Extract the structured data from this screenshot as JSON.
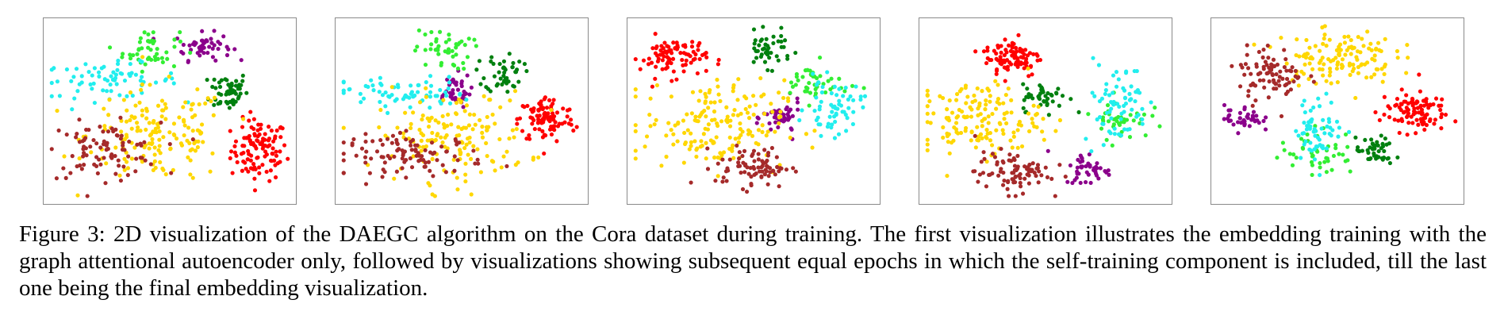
{
  "figure": {
    "caption": "Figure 3: 2D visualization of the DAEGC algorithm on the Cora dataset during training. The first visualization illustrates the embedding training with the graph attentional autoencoder only, followed by visualizations showing subsequent equal epochs in which the self-training component is included, till the last one being the final embedding visualization."
  },
  "chart_data": [
    {
      "type": "scatter",
      "xlim": [
        0,
        1
      ],
      "ylim": [
        0,
        1
      ],
      "grid": false,
      "clusters": [
        {
          "color": "#ff0000",
          "center": [
            0.88,
            0.27
          ],
          "spread": [
            0.06,
            0.09
          ],
          "count": 110
        },
        {
          "color": "#00800f",
          "center": [
            0.75,
            0.62
          ],
          "spread": [
            0.04,
            0.06
          ],
          "count": 55
        },
        {
          "color": "#8b008b",
          "center": [
            0.64,
            0.88
          ],
          "spread": [
            0.06,
            0.04
          ],
          "count": 50
        },
        {
          "color": "#33ee33",
          "center": [
            0.42,
            0.86
          ],
          "spread": [
            0.06,
            0.06
          ],
          "count": 45
        },
        {
          "color": "#22eeee",
          "center": [
            0.24,
            0.68
          ],
          "spread": [
            0.15,
            0.05
          ],
          "count": 70
        },
        {
          "color": "#ffd700",
          "center": [
            0.45,
            0.36
          ],
          "spread": [
            0.15,
            0.14
          ],
          "count": 160
        },
        {
          "color": "#a52a2a",
          "center": [
            0.22,
            0.27
          ],
          "spread": [
            0.12,
            0.08
          ],
          "count": 90
        }
      ]
    },
    {
      "type": "scatter",
      "xlim": [
        0,
        1
      ],
      "ylim": [
        0,
        1
      ],
      "grid": false,
      "clusters": [
        {
          "color": "#ff0000",
          "center": [
            0.86,
            0.45
          ],
          "spread": [
            0.06,
            0.07
          ],
          "count": 100
        },
        {
          "color": "#00800f",
          "center": [
            0.68,
            0.73
          ],
          "spread": [
            0.04,
            0.06
          ],
          "count": 45
        },
        {
          "color": "#8b008b",
          "center": [
            0.46,
            0.62
          ],
          "spread": [
            0.04,
            0.05
          ],
          "count": 40
        },
        {
          "color": "#33ee33",
          "center": [
            0.42,
            0.86
          ],
          "spread": [
            0.06,
            0.06
          ],
          "count": 45
        },
        {
          "color": "#22eeee",
          "center": [
            0.25,
            0.6
          ],
          "spread": [
            0.14,
            0.05
          ],
          "count": 70
        },
        {
          "color": "#ffd700",
          "center": [
            0.46,
            0.35
          ],
          "spread": [
            0.16,
            0.13
          ],
          "count": 150
        },
        {
          "color": "#a52a2a",
          "center": [
            0.3,
            0.24
          ],
          "spread": [
            0.15,
            0.06
          ],
          "count": 100
        }
      ]
    },
    {
      "type": "scatter",
      "xlim": [
        0,
        1
      ],
      "ylim": [
        0,
        1
      ],
      "grid": false,
      "clusters": [
        {
          "color": "#ff0000",
          "center": [
            0.16,
            0.82
          ],
          "spread": [
            0.07,
            0.06
          ],
          "count": 90
        },
        {
          "color": "#00800f",
          "center": [
            0.56,
            0.86
          ],
          "spread": [
            0.05,
            0.05
          ],
          "count": 45
        },
        {
          "color": "#8b008b",
          "center": [
            0.62,
            0.46
          ],
          "spread": [
            0.04,
            0.05
          ],
          "count": 45
        },
        {
          "color": "#33ee33",
          "center": [
            0.76,
            0.66
          ],
          "spread": [
            0.07,
            0.06
          ],
          "count": 45
        },
        {
          "color": "#22eeee",
          "center": [
            0.84,
            0.52
          ],
          "spread": [
            0.06,
            0.08
          ],
          "count": 60
        },
        {
          "color": "#ffd700",
          "center": [
            0.33,
            0.42
          ],
          "spread": [
            0.15,
            0.13
          ],
          "count": 170
        },
        {
          "color": "#a52a2a",
          "center": [
            0.5,
            0.17
          ],
          "spread": [
            0.08,
            0.06
          ],
          "count": 80
        }
      ]
    },
    {
      "type": "scatter",
      "xlim": [
        0,
        1
      ],
      "ylim": [
        0,
        1
      ],
      "grid": false,
      "clusters": [
        {
          "color": "#ff0000",
          "center": [
            0.36,
            0.82
          ],
          "spread": [
            0.06,
            0.06
          ],
          "count": 90
        },
        {
          "color": "#00800f",
          "center": [
            0.5,
            0.58
          ],
          "spread": [
            0.05,
            0.04
          ],
          "count": 45
        },
        {
          "color": "#8b008b",
          "center": [
            0.68,
            0.16
          ],
          "spread": [
            0.05,
            0.05
          ],
          "count": 45
        },
        {
          "color": "#33ee33",
          "center": [
            0.82,
            0.46
          ],
          "spread": [
            0.06,
            0.06
          ],
          "count": 40
        },
        {
          "color": "#22eeee",
          "center": [
            0.8,
            0.55
          ],
          "spread": [
            0.07,
            0.12
          ],
          "count": 70
        },
        {
          "color": "#ffd700",
          "center": [
            0.22,
            0.45
          ],
          "spread": [
            0.13,
            0.11
          ],
          "count": 150
        },
        {
          "color": "#a52a2a",
          "center": [
            0.36,
            0.14
          ],
          "spread": [
            0.08,
            0.06
          ],
          "count": 85
        }
      ]
    },
    {
      "type": "scatter",
      "xlim": [
        0,
        1
      ],
      "ylim": [
        0,
        1
      ],
      "grid": false,
      "clusters": [
        {
          "color": "#ff0000",
          "center": [
            0.82,
            0.5
          ],
          "spread": [
            0.07,
            0.06
          ],
          "count": 100
        },
        {
          "color": "#00800f",
          "center": [
            0.66,
            0.26
          ],
          "spread": [
            0.04,
            0.04
          ],
          "count": 45
        },
        {
          "color": "#8b008b",
          "center": [
            0.1,
            0.46
          ],
          "spread": [
            0.04,
            0.04
          ],
          "count": 40
        },
        {
          "color": "#33ee33",
          "center": [
            0.42,
            0.26
          ],
          "spread": [
            0.08,
            0.07
          ],
          "count": 45
        },
        {
          "color": "#22eeee",
          "center": [
            0.42,
            0.4
          ],
          "spread": [
            0.05,
            0.09
          ],
          "count": 60
        },
        {
          "color": "#ffd700",
          "center": [
            0.5,
            0.82
          ],
          "spread": [
            0.12,
            0.08
          ],
          "count": 130
        },
        {
          "color": "#a52a2a",
          "center": [
            0.22,
            0.72
          ],
          "spread": [
            0.07,
            0.08
          ],
          "count": 85
        }
      ]
    }
  ]
}
